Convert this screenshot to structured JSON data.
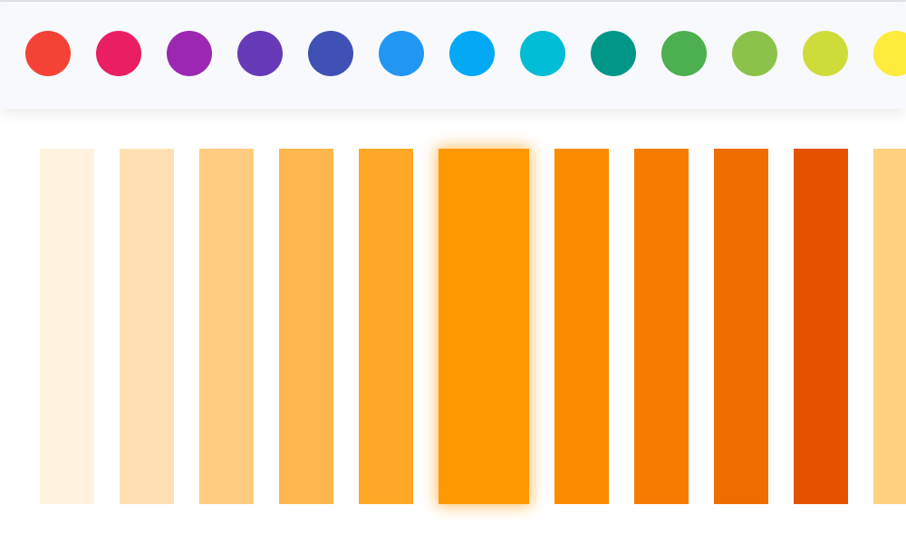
{
  "hue_palette": [
    {
      "name": "red",
      "color": "#F44336"
    },
    {
      "name": "pink",
      "color": "#E91E63"
    },
    {
      "name": "purple",
      "color": "#9C27B0"
    },
    {
      "name": "deep-purple",
      "color": "#673AB7"
    },
    {
      "name": "indigo",
      "color": "#3F51B5"
    },
    {
      "name": "blue",
      "color": "#2196F3"
    },
    {
      "name": "light-blue",
      "color": "#03A9F4"
    },
    {
      "name": "cyan",
      "color": "#00BCD4"
    },
    {
      "name": "teal",
      "color": "#009688"
    },
    {
      "name": "green",
      "color": "#4CAF50"
    },
    {
      "name": "light-green",
      "color": "#8BC34A"
    },
    {
      "name": "lime",
      "color": "#CDDC39"
    },
    {
      "name": "yellow",
      "color": "#FFEB3B"
    }
  ],
  "shades": [
    {
      "color": "#FFF3E0",
      "selected": false
    },
    {
      "color": "#FFE0B2",
      "selected": false
    },
    {
      "color": "#FFCC80",
      "selected": false
    },
    {
      "color": "#FFB74D",
      "selected": false
    },
    {
      "color": "#FFA726",
      "selected": false
    },
    {
      "color": "#FF9800",
      "selected": true
    },
    {
      "color": "#FB8C00",
      "selected": false
    },
    {
      "color": "#F57C00",
      "selected": false
    },
    {
      "color": "#EF6C00",
      "selected": false
    },
    {
      "color": "#E65100",
      "selected": false
    },
    {
      "color": "#FFD180",
      "selected": false
    }
  ]
}
